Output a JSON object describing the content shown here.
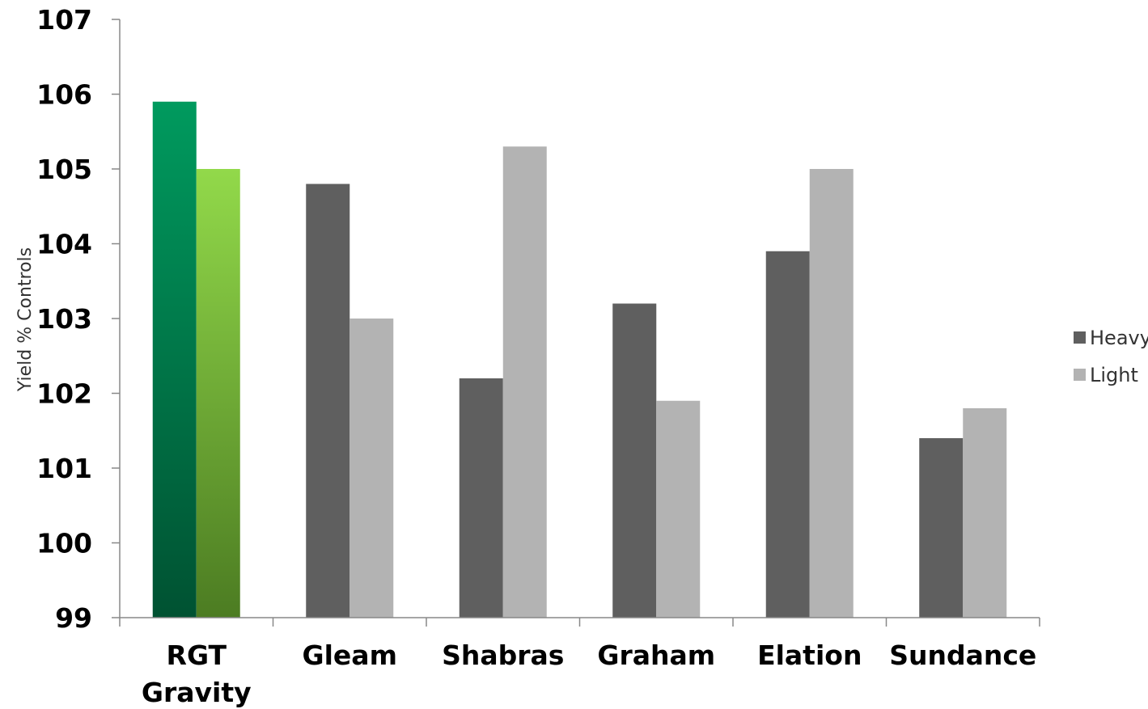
{
  "chart_data": {
    "type": "bar",
    "categories": [
      [
        "RGT",
        "Gravity"
      ],
      [
        "Gleam"
      ],
      [
        "Shabras"
      ],
      [
        "Graham"
      ],
      [
        "Elation"
      ],
      [
        "Sundance"
      ]
    ],
    "series": [
      {
        "name": "Heavy",
        "values": [
          105.9,
          104.8,
          102.2,
          103.2,
          103.9,
          101.4
        ]
      },
      {
        "name": "Light",
        "values": [
          105.0,
          103.0,
          105.3,
          101.9,
          105.0,
          101.8
        ]
      }
    ],
    "ylabel": "Yield % Controls",
    "xlabel": "",
    "ylim": [
      99,
      107
    ],
    "yticks": [
      "99",
      "100",
      "101",
      "102",
      "103",
      "104",
      "105",
      "106",
      "107"
    ],
    "grid": false,
    "legend": "right",
    "colors": {
      "heavy": "#5f5f5f",
      "light": "#b3b3b3",
      "highlight_heavy_top": "#009a5e",
      "highlight_heavy_bottom": "#005232",
      "highlight_light_top": "#92d94a",
      "highlight_light_bottom": "#4c7c22",
      "axis": "#888888"
    },
    "highlight_category": "RGT Gravity"
  }
}
